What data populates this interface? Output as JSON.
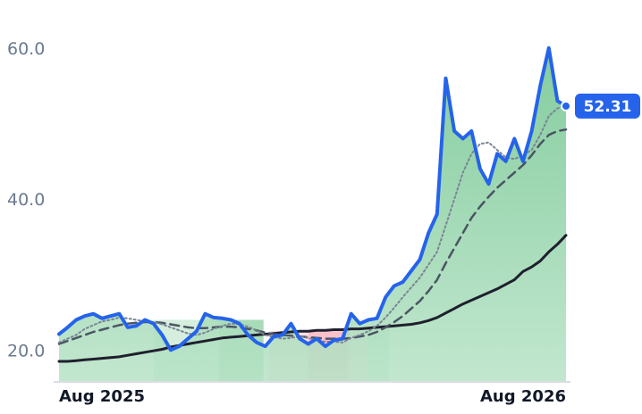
{
  "chart_data": {
    "type": "line",
    "categories": [
      "Aug 2025",
      null,
      null,
      null,
      null,
      null,
      null,
      null,
      null,
      null,
      null,
      null,
      null,
      null,
      null,
      null,
      null,
      null,
      null,
      null,
      null,
      null,
      null,
      null,
      null,
      null,
      null,
      null,
      null,
      null,
      null,
      null,
      null,
      null,
      null,
      null,
      null,
      null,
      null,
      null,
      null,
      null,
      null,
      null,
      null,
      null,
      null,
      null,
      null,
      null,
      null,
      null,
      null,
      null,
      null,
      null,
      null,
      null,
      null,
      "Aug 2026"
    ],
    "ylim": [
      15.9,
      64
    ],
    "yticks": [
      {
        "value": 20,
        "label": "20.0"
      },
      {
        "value": 40,
        "label": "40.0"
      },
      {
        "value": 60,
        "label": "60.0"
      }
    ],
    "area_color": "#8fd3a6",
    "bands": [
      {
        "from": 11,
        "to": 18.6,
        "top": 24,
        "color": "#d5eedd"
      },
      {
        "from": 18.6,
        "to": 23.8,
        "top": 24,
        "color": "#a8dbb8"
      },
      {
        "from": 24.4,
        "to": 29,
        "top": 22.5,
        "color": "#fde0e5"
      },
      {
        "from": 29,
        "to": 33.7,
        "top": 22.5,
        "color": "#fac0cb"
      },
      {
        "from": 33.7,
        "to": 35.8,
        "top": 22.5,
        "color": "#fde0e5"
      },
      {
        "from": 35.8,
        "to": 38.4,
        "top": 23,
        "color": "#d5eedd"
      }
    ],
    "series": [
      {
        "color": "#1f1f2e",
        "style": "solid",
        "width": 3,
        "values": [
          18.5,
          18.5,
          18.6,
          18.7,
          18.8,
          18.9,
          19,
          19.1,
          19.3,
          19.5,
          19.7,
          19.9,
          20.1,
          20.4,
          20.6,
          20.8,
          21,
          21.2,
          21.4,
          21.6,
          21.7,
          21.8,
          21.9,
          22,
          22.1,
          22.2,
          22.3,
          22.4,
          22.5,
          22.5,
          22.6,
          22.6,
          22.7,
          22.7,
          22.8,
          22.8,
          22.9,
          23,
          23.1,
          23.2,
          23.3,
          23.4,
          23.6,
          23.9,
          24.3,
          24.9,
          25.5,
          26.1,
          26.6,
          27.1,
          27.6,
          28.1,
          28.7,
          29.3,
          30.4,
          31,
          31.8,
          33,
          34,
          35.2
        ]
      },
      {
        "color": "#4a5563",
        "style": "dashed",
        "width": 2.5,
        "values": [
          20.8,
          21.2,
          21.6,
          22,
          22.4,
          22.7,
          23,
          23.3,
          23.5,
          23.6,
          23.7,
          23.7,
          23.6,
          23.4,
          23.2,
          23,
          22.9,
          22.9,
          23,
          23.1,
          23.1,
          23,
          22.8,
          22.6,
          22.3,
          22.1,
          22,
          21.9,
          21.8,
          21.7,
          21.6,
          21.5,
          21.5,
          21.5,
          21.6,
          21.8,
          22,
          22.4,
          23,
          23.7,
          24.5,
          25.5,
          26.5,
          27.8,
          29.3,
          31.5,
          33.5,
          35.5,
          37.5,
          39,
          40.3,
          41.5,
          42.5,
          43.5,
          44.5,
          45.8,
          47.3,
          48.5,
          49,
          49.2
        ]
      },
      {
        "color": "#7a8594",
        "style": "dotted",
        "width": 2,
        "values": [
          21,
          21.5,
          22,
          22.8,
          23.3,
          23.8,
          24,
          24.3,
          24.2,
          24,
          23.8,
          23.7,
          23.4,
          23,
          22.6,
          22.2,
          22,
          22.3,
          22.8,
          23.2,
          23.5,
          23.4,
          23.1,
          22.6,
          22,
          21.7,
          21.5,
          21.6,
          21.8,
          21.6,
          21.3,
          21.1,
          21.1,
          21,
          21.6,
          22,
          22.5,
          23.2,
          24.3,
          25.6,
          27,
          28.3,
          29.6,
          31.3,
          33,
          36.5,
          40,
          43.5,
          46,
          47.3,
          47.5,
          46.5,
          45.5,
          45.3,
          45.8,
          46.5,
          48.5,
          51,
          52,
          52.5
        ]
      },
      {
        "color": "#2563eb",
        "style": "solid",
        "width": 4,
        "area": true,
        "last_label": true,
        "values": [
          22.1,
          23,
          24,
          24.5,
          24.8,
          24.2,
          24.5,
          24.8,
          23,
          23.2,
          24,
          23.5,
          22,
          20,
          20.5,
          21.5,
          22.5,
          24.8,
          24.3,
          24.2,
          24,
          23.5,
          22,
          21,
          20.5,
          21.8,
          22,
          23.5,
          21.5,
          20.8,
          21.5,
          20.5,
          21.3,
          21.5,
          24.8,
          23.5,
          24,
          24.2,
          27,
          28.5,
          29,
          30.5,
          32,
          35.5,
          38,
          56,
          49,
          48,
          49,
          44,
          42,
          46,
          45,
          48,
          45,
          49,
          55,
          60,
          53,
          52.31
        ]
      }
    ]
  }
}
